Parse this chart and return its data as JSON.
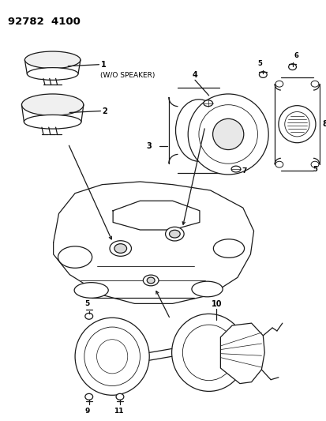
{
  "title": "92782  4100",
  "background_color": "#ffffff",
  "line_color": "#1a1a1a",
  "text_color": "#000000",
  "fig_width": 4.14,
  "fig_height": 5.33,
  "dpi": 100
}
